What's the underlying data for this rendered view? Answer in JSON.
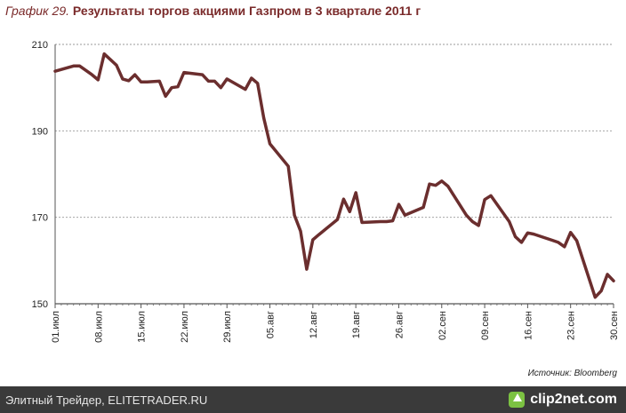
{
  "title": {
    "prefix": "График 29.",
    "text": "Результаты торгов акциями Газпром в 3 квартале 2011 г"
  },
  "source": "Источник: Bloomberg",
  "footer": {
    "site": "Элитный Трейдер, ELITETRADER.RU",
    "logo_text": "clip2net.com"
  },
  "colors": {
    "line": "#6b2e2e",
    "grid": "#999999",
    "title": "#7a2a2a"
  },
  "chart_data": {
    "type": "line",
    "title": "",
    "xlabel": "",
    "ylabel": "",
    "ylim": [
      150,
      210
    ],
    "yticks": [
      150,
      170,
      190,
      210
    ],
    "grid": true,
    "x_tick_labels": [
      "01.июл",
      "08.июл",
      "15.июл",
      "22.июл",
      "29.июл",
      "05.авг",
      "12.авг",
      "19.авг",
      "26.авг",
      "02.сен",
      "09.сен",
      "16.сен",
      "23.сен",
      "30.сен"
    ],
    "x_tick_days": [
      0,
      7,
      14,
      21,
      28,
      35,
      42,
      49,
      56,
      63,
      70,
      77,
      84,
      91
    ],
    "x_range": [
      0,
      91
    ],
    "series": [
      {
        "name": "",
        "x": [
          0,
          3,
          4,
          6,
          7,
          8,
          10,
          11,
          12,
          13,
          14,
          15,
          17,
          18,
          19,
          20,
          21,
          24,
          25,
          26,
          27,
          28,
          31,
          32,
          33,
          34,
          35,
          38,
          39,
          40,
          41,
          42,
          43,
          46,
          47,
          48,
          49,
          50,
          53,
          54,
          55,
          56,
          57,
          60,
          61,
          62,
          63,
          64,
          67,
          68,
          69,
          70,
          71,
          74,
          75,
          76,
          77,
          78,
          81,
          82,
          83,
          84,
          85,
          88,
          89,
          90,
          91
        ],
        "values": [
          203.8,
          205.0,
          205.0,
          203.0,
          201.8,
          207.8,
          205.2,
          202.0,
          201.6,
          203.0,
          201.3,
          201.3,
          201.5,
          198.0,
          200.0,
          200.2,
          203.5,
          203.0,
          201.5,
          201.5,
          200.0,
          202.0,
          199.6,
          202.2,
          201.0,
          193.0,
          187.0,
          181.8,
          170.5,
          166.8,
          158.0,
          164.8,
          166.0,
          169.5,
          174.2,
          171.3,
          175.7,
          168.8,
          169.0,
          169.0,
          169.2,
          173.0,
          170.5,
          172.3,
          177.7,
          177.4,
          178.4,
          177.2,
          170.5,
          169.0,
          168.1,
          174.1,
          175.0,
          169.0,
          165.5,
          164.2,
          166.4,
          166.1,
          164.7,
          164.2,
          163.2,
          166.5,
          164.6,
          151.5,
          153.0,
          156.8,
          155.3
        ]
      }
    ],
    "series_tail": {
      "x": [
        84,
        85,
        88,
        89,
        90,
        91
      ],
      "note": ""
    }
  }
}
